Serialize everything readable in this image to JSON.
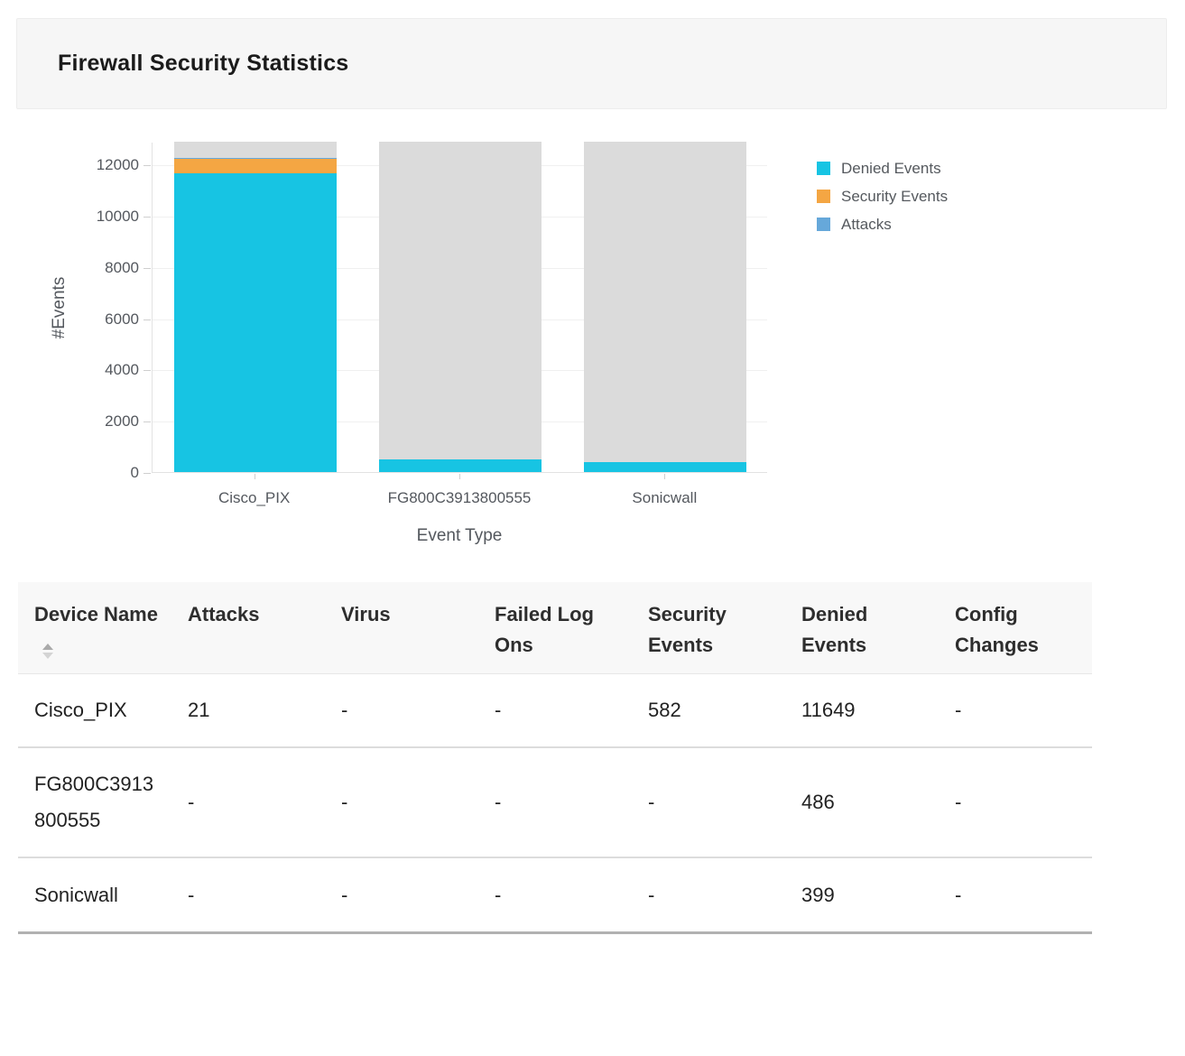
{
  "header": {
    "title": "Firewall Security Statistics"
  },
  "chart_data": {
    "type": "bar",
    "stacked": true,
    "title": "",
    "xlabel": "Event Type",
    "ylabel": "#Events",
    "categories": [
      "Cisco_PIX",
      "FG800C3913800555",
      "Sonicwall"
    ],
    "series": [
      {
        "name": "Denied Events",
        "color": "#17C4E3",
        "values": [
          11649,
          486,
          399
        ]
      },
      {
        "name": "Security Events",
        "color": "#F4A643",
        "values": [
          582,
          0,
          0
        ]
      },
      {
        "name": "Attacks",
        "color": "#66A8DA",
        "values": [
          21,
          0,
          0
        ]
      }
    ],
    "y_ticks": [
      0,
      2000,
      4000,
      6000,
      8000,
      10000,
      12000
    ],
    "ylim": [
      0,
      12890
    ],
    "grid": true,
    "legend_position": "right",
    "bar_track_color": "#DBDBDB"
  },
  "icons": {
    "device_name_sort": "sort-up-down-triangles"
  },
  "table": {
    "columns": [
      {
        "label": "Device Name",
        "sortable": true
      },
      {
        "label": "Attacks",
        "sortable": false
      },
      {
        "label": "Virus",
        "sortable": false
      },
      {
        "label": "Failed Log Ons",
        "sortable": false
      },
      {
        "label": "Security Events",
        "sortable": false
      },
      {
        "label": "Denied Events",
        "sortable": false
      },
      {
        "label": "Config Changes",
        "sortable": false
      }
    ],
    "rows": [
      [
        "Cisco_PIX",
        "21",
        "-",
        "-",
        "582",
        "11649",
        "-"
      ],
      [
        "FG800C3913800555",
        "-",
        "-",
        "-",
        "-",
        "486",
        "-"
      ],
      [
        "Sonicwall",
        "-",
        "-",
        "-",
        "-",
        "399",
        "-"
      ]
    ]
  }
}
